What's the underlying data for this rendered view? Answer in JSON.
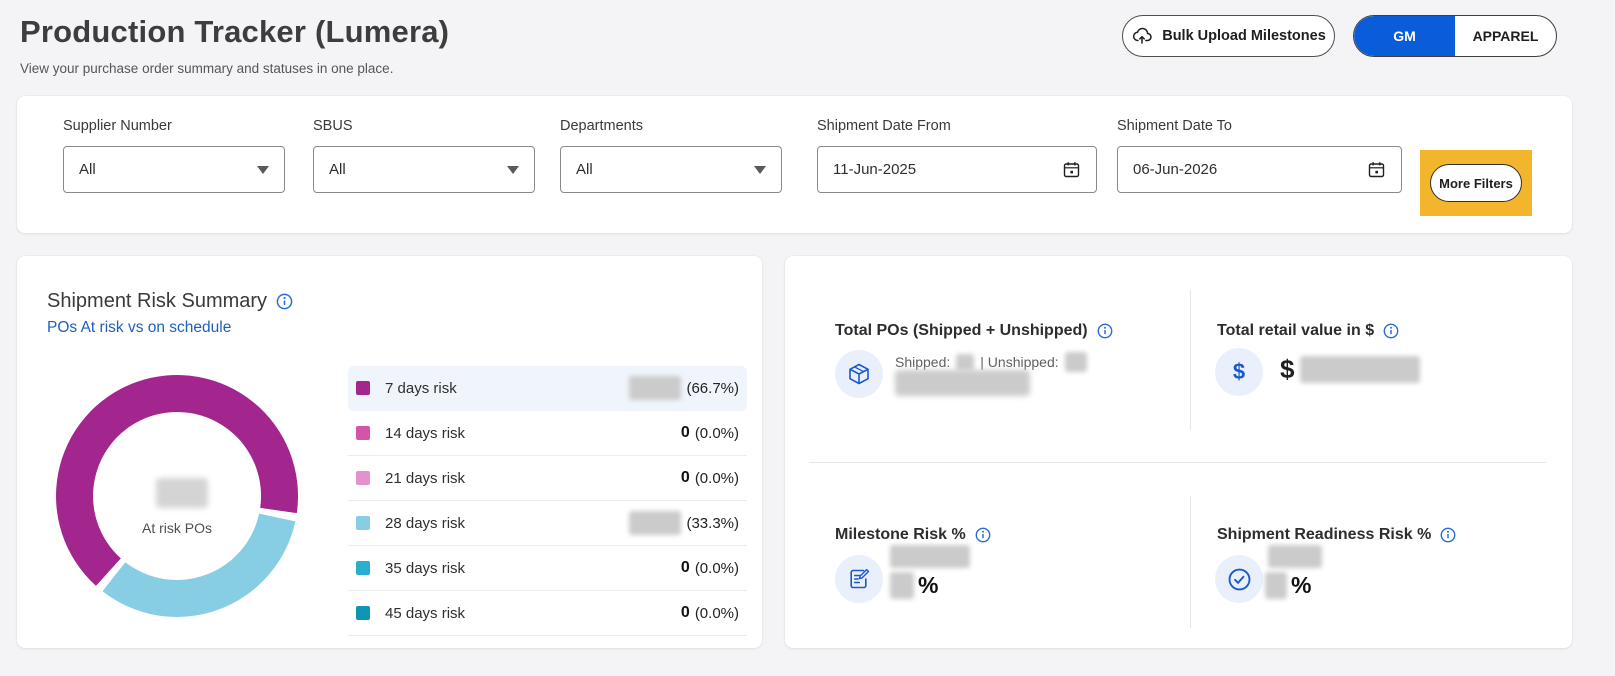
{
  "colors": {
    "accent_blue": "#0b5cd8",
    "link_blue": "#1e5fbe",
    "info_blue": "#2b6cd4",
    "icon_blue": "#1b57ce",
    "highlight_yellow": "#f2b52b",
    "page_bg": "#f4f4f6"
  },
  "page": {
    "title": "Production Tracker (Lumera)",
    "subtitle": "View your purchase order summary and statuses in one place."
  },
  "header": {
    "bulk_upload_label": "Bulk Upload Milestones",
    "toggle": {
      "options": [
        "GM",
        "APPAREL"
      ],
      "active": "GM"
    }
  },
  "filters": {
    "supplier_number": {
      "label": "Supplier Number",
      "value": "All"
    },
    "sbus": {
      "label": "SBUS",
      "value": "All"
    },
    "departments": {
      "label": "Departments",
      "value": "All"
    },
    "shipment_date_from": {
      "label": "Shipment Date From",
      "value": "11-Jun-2025"
    },
    "shipment_date_to": {
      "label": "Shipment Date To",
      "value": "06-Jun-2026"
    },
    "more_filters_label": "More Filters"
  },
  "risk_summary": {
    "title": "Shipment Risk Summary",
    "subtitle": "POs At risk vs on schedule",
    "center_label": "At risk POs",
    "center_value_redacted": true
  },
  "chart_data": {
    "type": "pie",
    "title": "Shipment Risk Summary",
    "center_label": "At risk POs",
    "start_angle": 220,
    "segment_gap_degrees": 4,
    "segments": [
      {
        "label": "7 days risk",
        "percent": 66.7,
        "percent_text": "(66.7%)",
        "color": "#a3268e",
        "value_redacted": true,
        "highlighted": true
      },
      {
        "label": "14 days risk",
        "percent": 0,
        "percent_text": "(0.0%)",
        "color": "#d354a8",
        "value": "0"
      },
      {
        "label": "21 days risk",
        "percent": 0,
        "percent_text": "(0.0%)",
        "color": "#e393cb",
        "value": "0"
      },
      {
        "label": "28 days risk",
        "percent": 33.3,
        "percent_text": "(33.3%)",
        "color": "#87cee4",
        "value_redacted": true
      },
      {
        "label": "35 days risk",
        "percent": 0,
        "percent_text": "(0.0%)",
        "color": "#29aece",
        "value": "0"
      },
      {
        "label": "45 days risk",
        "percent": 0,
        "percent_text": "(0.0%)",
        "color": "#0e96b4",
        "value": "0"
      }
    ]
  },
  "stats": {
    "total_pos": {
      "title": "Total POs (Shipped + Unshipped)",
      "shipped_label": "Shipped:",
      "unshipped_label": "| Unshipped:",
      "values_redacted": true
    },
    "retail_value": {
      "title": "Total retail value in $",
      "currency_prefix": "$",
      "value_redacted": true
    },
    "milestone_risk": {
      "title": "Milestone Risk %",
      "unit_suffix": "%",
      "value_redacted": true
    },
    "shipment_readiness_risk": {
      "title": "Shipment Readiness Risk %",
      "unit_suffix": "%",
      "value_redacted": true
    }
  }
}
